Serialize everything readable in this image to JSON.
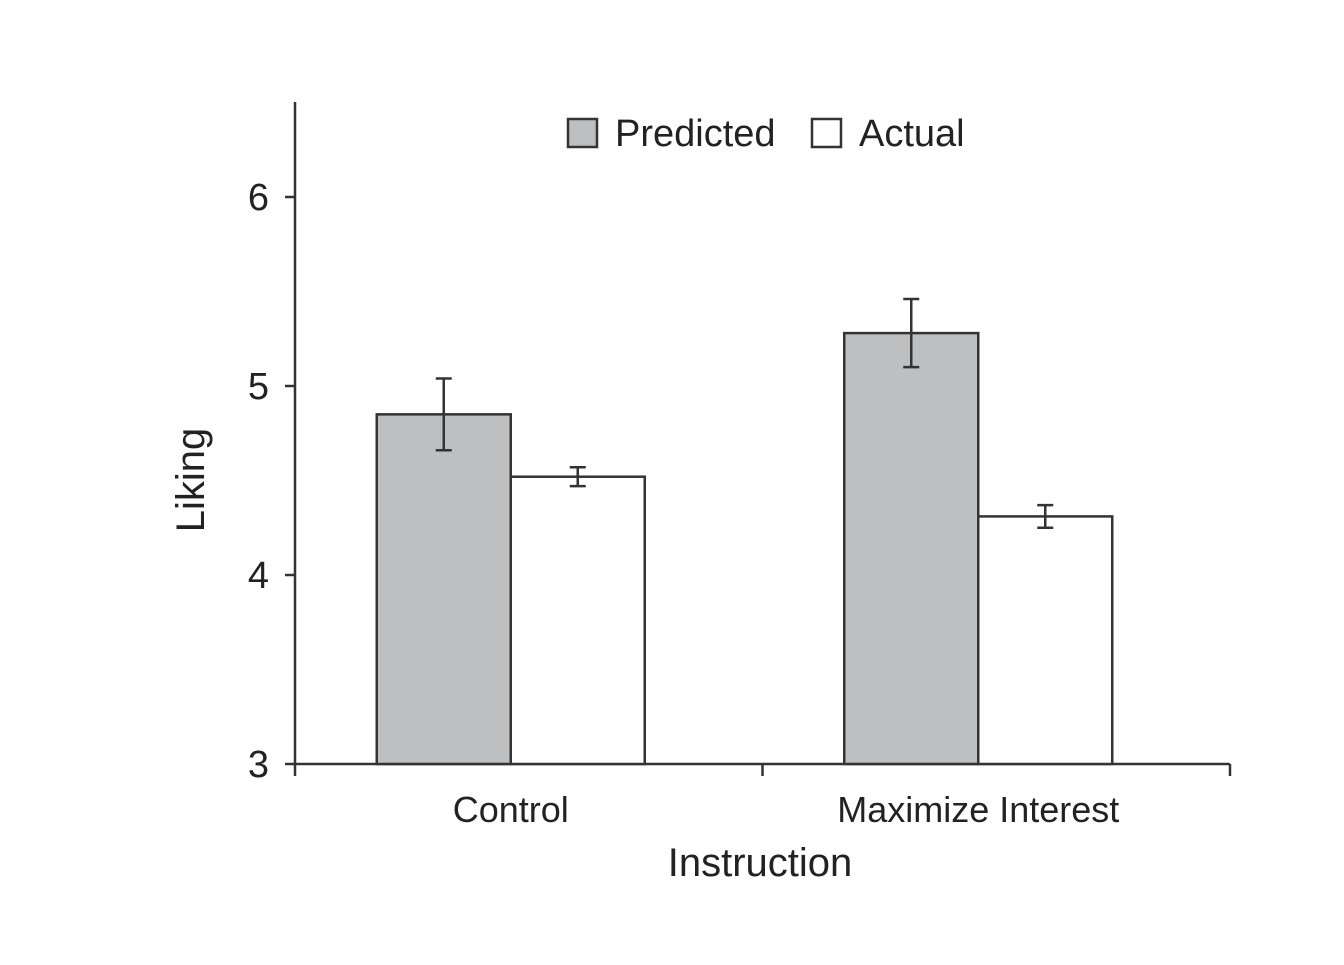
{
  "chart_data": {
    "type": "bar",
    "title": "",
    "xlabel": "Instruction",
    "ylabel": "Liking",
    "categories": [
      "Control",
      "Maximize Interest"
    ],
    "series": [
      {
        "name": "Predicted",
        "values": [
          4.85,
          5.28
        ],
        "errors": [
          0.19,
          0.18
        ],
        "fill": "#bebfc1"
      },
      {
        "name": "Actual",
        "values": [
          4.52,
          4.31
        ],
        "errors": [
          0.05,
          0.06
        ],
        "fill": "#ffffff"
      }
    ],
    "ylim": [
      3,
      6.5
    ],
    "yticks": [
      3,
      4,
      5,
      6
    ],
    "legend": "top-center",
    "grid": false
  }
}
